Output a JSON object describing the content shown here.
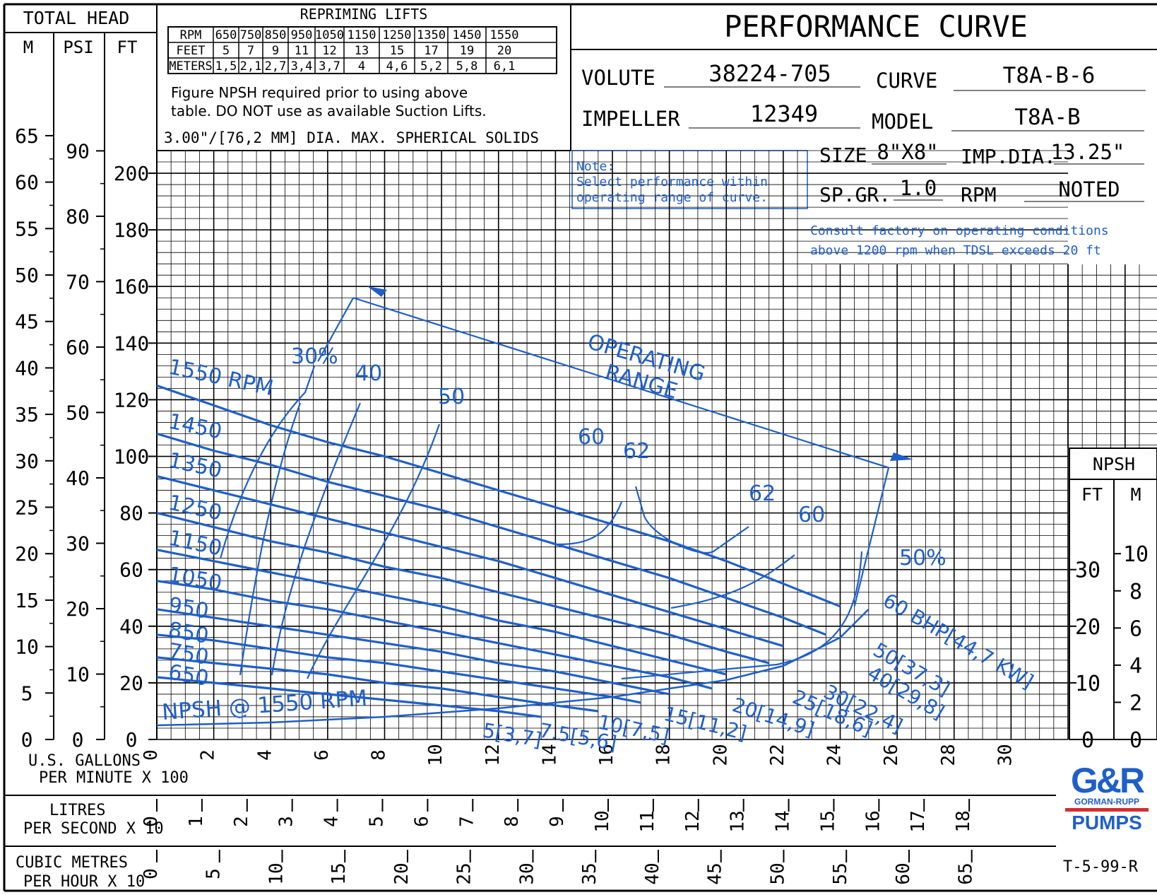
{
  "header": {
    "title": "PERFORMANCE CURVE",
    "total_head": "TOTAL HEAD",
    "col_m": "M",
    "col_psi": "PSI",
    "col_ft": "FT",
    "volute_label": "VOLUTE",
    "volute_value": "38224-705",
    "curve_label": "CURVE",
    "curve_value": "T8A-B-6",
    "impeller_label": "IMPELLER",
    "impeller_value": "12349",
    "model_label": "MODEL",
    "model_value": "T8A-B",
    "size_label": "SIZE",
    "size_value": "8\"X8\"",
    "impdia_label": "IMP.DIA.",
    "impdia_value": "13.25\"",
    "spgr_label": "SP.GR.",
    "spgr_value": "1.0",
    "rpm_label": "RPM",
    "rpm_value": "NOTED",
    "note_title": "Note:",
    "note_line1": "Select performance within",
    "note_line2": "operating range of curve.",
    "consult_line1": "Consult factory on operating conditions",
    "consult_line2": "above 1200 rpm when TDSL exceeds 20 ft",
    "solids": "3.00\"/[76,2 MM] DIA. MAX. SPHERICAL SOLIDS",
    "figure_note1": "Figure NPSH required prior to using above",
    "figure_note2": "table. DO NOT use as available Suction Lifts.",
    "doc_number": "T-5-99-R"
  },
  "repriming": {
    "title": "REPRIMING LIFTS",
    "rows": [
      [
        "RPM",
        "650",
        "750",
        "850",
        "950",
        "1050",
        "1150",
        "1250",
        "1350",
        "1450",
        "1550"
      ],
      [
        "FEET",
        "5",
        "7",
        "9",
        "11",
        "12",
        "13",
        "15",
        "17",
        "19",
        "20"
      ],
      [
        "METERS",
        "1,5",
        "2,1",
        "2,7",
        "3,4",
        "3,7",
        "4",
        "4,6",
        "5,2",
        "5,8",
        "6,1"
      ]
    ]
  },
  "axes": {
    "m_ticks": [
      "0",
      "5",
      "10",
      "15",
      "20",
      "25",
      "30",
      "35",
      "40",
      "45",
      "50",
      "55",
      "60",
      "65"
    ],
    "psi_ticks": [
      "0",
      "10",
      "20",
      "30",
      "40",
      "50",
      "60",
      "70",
      "80",
      "90"
    ],
    "ft_ticks": [
      "0",
      "20",
      "40",
      "60",
      "80",
      "100",
      "120",
      "140",
      "160",
      "180",
      "200"
    ],
    "gpm_ticks": [
      "0",
      "2",
      "4",
      "6",
      "8",
      "10",
      "12",
      "14",
      "16",
      "18",
      "20",
      "22",
      "24",
      "26",
      "28",
      "30"
    ],
    "lps_ticks": [
      "0",
      "1",
      "2",
      "3",
      "4",
      "5",
      "6",
      "7",
      "8",
      "9",
      "10",
      "11",
      "12",
      "13",
      "14",
      "15",
      "16",
      "17",
      "18"
    ],
    "m3h_ticks": [
      "0",
      "5",
      "10",
      "15",
      "20",
      "25",
      "30",
      "35",
      "40",
      "45",
      "50",
      "55",
      "60",
      "65"
    ],
    "gpm_label1": "U.S. GALLONS",
    "gpm_label2": "PER MINUTE  X 100",
    "lps_label1": "LITRES",
    "lps_label2": "PER SECOND  X 10",
    "m3h_label1": "CUBIC METRES",
    "m3h_label2": "PER HOUR X 10",
    "npsh_title": "NPSH",
    "npsh_ft": "FT",
    "npsh_m": "M",
    "npsh_ft_ticks": [
      "0",
      "10",
      "20",
      "30"
    ],
    "npsh_m_ticks": [
      "0",
      "2",
      "4",
      "6",
      "8",
      "10"
    ]
  },
  "annotations": {
    "operating_range1": "OPERATING",
    "operating_range2": "RANGE",
    "eff_30": "30%",
    "eff_40": "40",
    "eff_50": "50",
    "eff_60a": "60",
    "eff_62a": "62",
    "eff_62b": "62",
    "eff_60b": "60",
    "eff_50b": "50%",
    "npsh_curve": "NPSH @ 1550 RPM",
    "bhp_labels": [
      "60 BHP[44,7 KW]",
      "50[37,3]",
      "40[29,8]",
      "30[22,4]",
      "25[18,6]",
      "20[14,9]",
      "15[11,2]",
      "10[7,5]",
      "7.5[5,6]",
      "5[3,7]"
    ]
  },
  "chart_data": {
    "type": "line",
    "xlabel": "U.S. GALLONS PER MINUTE X 100",
    "ylabel": "TOTAL HEAD FT",
    "xlim": [
      0,
      30
    ],
    "ylim": [
      0,
      200
    ],
    "grid": true,
    "series": [
      {
        "name": "1550 RPM",
        "x": [
          0,
          2,
          4,
          6,
          8,
          10,
          12,
          14,
          16,
          18,
          20,
          22,
          24
        ],
        "y": [
          125,
          118,
          111,
          105,
          100,
          94,
          88,
          82,
          76,
          70,
          63,
          55,
          47
        ]
      },
      {
        "name": "1450",
        "x": [
          0,
          2,
          4,
          6,
          8,
          10,
          12,
          14,
          16,
          18,
          20,
          22,
          23.5
        ],
        "y": [
          108,
          102,
          97,
          91,
          86,
          81,
          75,
          69,
          63,
          57,
          50,
          43,
          37
        ]
      },
      {
        "name": "1350",
        "x": [
          0,
          2,
          4,
          6,
          8,
          10,
          12,
          14,
          16,
          18,
          20,
          22
        ],
        "y": [
          93,
          88,
          83,
          78,
          73,
          68,
          63,
          57,
          51,
          45,
          39,
          33
        ]
      },
      {
        "name": "1250",
        "x": [
          0,
          2,
          4,
          6,
          8,
          10,
          12,
          14,
          16,
          18,
          20,
          21.5
        ],
        "y": [
          80,
          75,
          70,
          66,
          61,
          57,
          52,
          47,
          42,
          37,
          31,
          27
        ]
      },
      {
        "name": "1150",
        "x": [
          0,
          2,
          4,
          6,
          8,
          10,
          12,
          14,
          16,
          18,
          20
        ],
        "y": [
          67,
          63,
          59,
          55,
          51,
          47,
          42,
          38,
          33,
          28,
          23
        ]
      },
      {
        "name": "1050",
        "x": [
          0,
          2,
          4,
          6,
          8,
          10,
          12,
          14,
          16,
          18,
          19.5
        ],
        "y": [
          56,
          53,
          49,
          46,
          42,
          38,
          34,
          30,
          26,
          22,
          18
        ]
      },
      {
        "name": "950",
        "x": [
          0,
          2,
          4,
          6,
          8,
          10,
          12,
          14,
          16,
          18
        ],
        "y": [
          46,
          43,
          40,
          37,
          34,
          31,
          27,
          24,
          20,
          16
        ]
      },
      {
        "name": "850",
        "x": [
          0,
          2,
          4,
          6,
          8,
          10,
          12,
          14,
          16,
          17
        ],
        "y": [
          37,
          35,
          32,
          29,
          27,
          24,
          21,
          18,
          15,
          13
        ]
      },
      {
        "name": "750",
        "x": [
          0,
          2,
          4,
          6,
          8,
          10,
          12,
          14,
          15.5
        ],
        "y": [
          29,
          27,
          25,
          23,
          20,
          18,
          15,
          12,
          10
        ]
      },
      {
        "name": "650",
        "x": [
          0,
          2,
          4,
          6,
          8,
          10,
          12,
          13.5
        ],
        "y": [
          22,
          20,
          18,
          16,
          14,
          12,
          10,
          8
        ]
      },
      {
        "name": "NPSH @ 1550 RPM",
        "x": [
          0,
          4,
          8,
          12,
          16,
          20,
          22,
          24,
          25
        ],
        "y": [
          5,
          6,
          8,
          11,
          15,
          21,
          26,
          36,
          46
        ]
      }
    ],
    "operating_range": {
      "x": [
        6.9,
        25.7,
        24.5
      ],
      "y": [
        156,
        96,
        47
      ]
    }
  }
}
